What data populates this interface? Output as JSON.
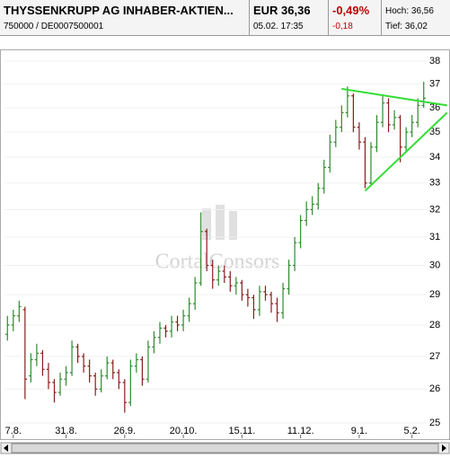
{
  "header": {
    "name": "THYSSENKRUPP AG INHABER-AKTIEN...",
    "id": "750000  /  DE0007500001",
    "price": "EUR 36,36",
    "time": "05.02. 17:35",
    "change_pct": "-0,49%",
    "change_abs": "-0,18",
    "high": "Hoch: 36,56",
    "low": "Tief: 36,02"
  },
  "chart_data": {
    "type": "ohlc",
    "watermark": "CortalConsors",
    "categories": [
      null,
      "7.8.",
      null,
      null,
      null,
      null,
      null,
      null,
      null,
      null,
      "31.8.",
      null,
      null,
      null,
      null,
      null,
      null,
      null,
      null,
      null,
      "26.9.",
      null,
      null,
      null,
      null,
      null,
      null,
      null,
      null,
      null,
      "20.10.",
      null,
      null,
      null,
      null,
      null,
      null,
      null,
      null,
      null,
      "15.11.",
      null,
      null,
      null,
      null,
      null,
      null,
      null,
      null,
      null,
      "11.12.",
      null,
      null,
      null,
      null,
      null,
      null,
      null,
      null,
      null,
      "9.1.",
      null,
      null,
      null,
      null,
      null,
      null,
      null,
      null,
      "5.2.",
      null,
      null
    ],
    "open": [
      27.7,
      28.0,
      28.3,
      28.5,
      26.4,
      26.9,
      27.1,
      26.6,
      26.2,
      25.9,
      26.3,
      26.5,
      27.3,
      27.0,
      26.7,
      26.4,
      26.0,
      26.4,
      26.8,
      26.5,
      26.2,
      25.6,
      26.7,
      26.9,
      26.3,
      27.3,
      27.6,
      27.9,
      27.8,
      28.1,
      28.0,
      28.3,
      28.7,
      29.4,
      31.2,
      30.0,
      29.5,
      29.8,
      29.6,
      29.3,
      29.4,
      29.0,
      28.9,
      28.5,
      29.1,
      29.0,
      28.7,
      28.4,
      29.2,
      30.0,
      30.8,
      31.6,
      32.0,
      32.2,
      32.8,
      33.6,
      34.6,
      35.2,
      35.8,
      36.5,
      35.2,
      34.6,
      33.0,
      34.4,
      35.4,
      36.2,
      35.3,
      35.6,
      34.4,
      35.0,
      35.4,
      36.1
    ],
    "high": [
      28.3,
      28.5,
      28.8,
      28.6,
      27.1,
      27.4,
      27.2,
      26.8,
      26.3,
      26.5,
      26.7,
      27.5,
      27.4,
      27.1,
      26.9,
      26.5,
      26.6,
      27.0,
      26.9,
      26.6,
      26.3,
      26.9,
      27.1,
      27.0,
      27.5,
      27.8,
      28.1,
      28.0,
      28.3,
      28.3,
      28.5,
      28.9,
      29.6,
      31.9,
      31.3,
      30.2,
      30.0,
      30.0,
      29.8,
      29.6,
      29.5,
      29.2,
      29.0,
      29.3,
      29.3,
      29.1,
      28.9,
      29.4,
      30.2,
      31.0,
      31.8,
      32.3,
      32.5,
      33.0,
      33.9,
      34.9,
      35.5,
      36.1,
      36.9,
      36.6,
      35.4,
      34.8,
      34.6,
      35.7,
      36.5,
      36.4,
      35.9,
      35.7,
      35.2,
      35.7,
      36.4,
      37.1
    ],
    "low": [
      27.5,
      27.8,
      28.1,
      25.7,
      26.2,
      26.7,
      26.4,
      26.0,
      25.6,
      25.8,
      26.1,
      26.4,
      26.8,
      26.5,
      26.2,
      25.8,
      25.9,
      26.3,
      26.3,
      26.0,
      25.3,
      25.5,
      26.5,
      26.1,
      26.2,
      27.1,
      27.4,
      27.6,
      27.6,
      27.8,
      27.8,
      28.1,
      28.5,
      29.3,
      29.8,
      29.2,
      29.3,
      29.4,
      29.1,
      29.0,
      28.8,
      28.6,
      28.2,
      28.3,
      28.8,
      28.4,
      28.1,
      28.2,
      29.0,
      29.8,
      30.6,
      31.4,
      31.8,
      32.0,
      32.6,
      33.4,
      34.4,
      35.0,
      35.6,
      35.0,
      34.3,
      32.8,
      32.9,
      34.2,
      35.2,
      35.0,
      35.1,
      33.8,
      34.2,
      34.8,
      35.2,
      36.0
    ],
    "close": [
      28.0,
      28.3,
      28.6,
      26.3,
      26.9,
      27.1,
      26.6,
      26.2,
      25.9,
      26.3,
      26.5,
      27.3,
      27.0,
      26.7,
      26.4,
      26.0,
      26.4,
      26.8,
      26.5,
      26.2,
      25.6,
      26.7,
      26.9,
      26.3,
      27.3,
      27.6,
      27.9,
      27.8,
      28.1,
      28.0,
      28.3,
      28.7,
      29.4,
      31.2,
      30.0,
      29.5,
      29.8,
      29.6,
      29.3,
      29.4,
      29.0,
      28.9,
      28.5,
      29.1,
      29.0,
      28.7,
      28.4,
      29.2,
      30.0,
      30.8,
      31.6,
      32.0,
      32.2,
      32.8,
      33.6,
      34.6,
      35.2,
      35.8,
      36.5,
      35.2,
      34.6,
      33.0,
      34.4,
      35.4,
      36.2,
      35.3,
      35.6,
      34.4,
      35.0,
      35.4,
      36.1,
      36.4
    ],
    "up_color": "#2e8b2e",
    "down_color": "#8b1c1c",
    "trendlines": [
      {
        "x": [
          57,
          75
        ],
        "y": [
          36.8,
          36.1
        ],
        "color": "#33dd33"
      },
      {
        "x": [
          61,
          75
        ],
        "y": [
          32.7,
          35.8
        ],
        "color": "#33dd33"
      }
    ],
    "ylim": [
      25,
      38
    ],
    "yticks": [
      25,
      26,
      27,
      28,
      29,
      30,
      31,
      32,
      33,
      34,
      35,
      36,
      37,
      38
    ],
    "log": true,
    "grid": true
  }
}
